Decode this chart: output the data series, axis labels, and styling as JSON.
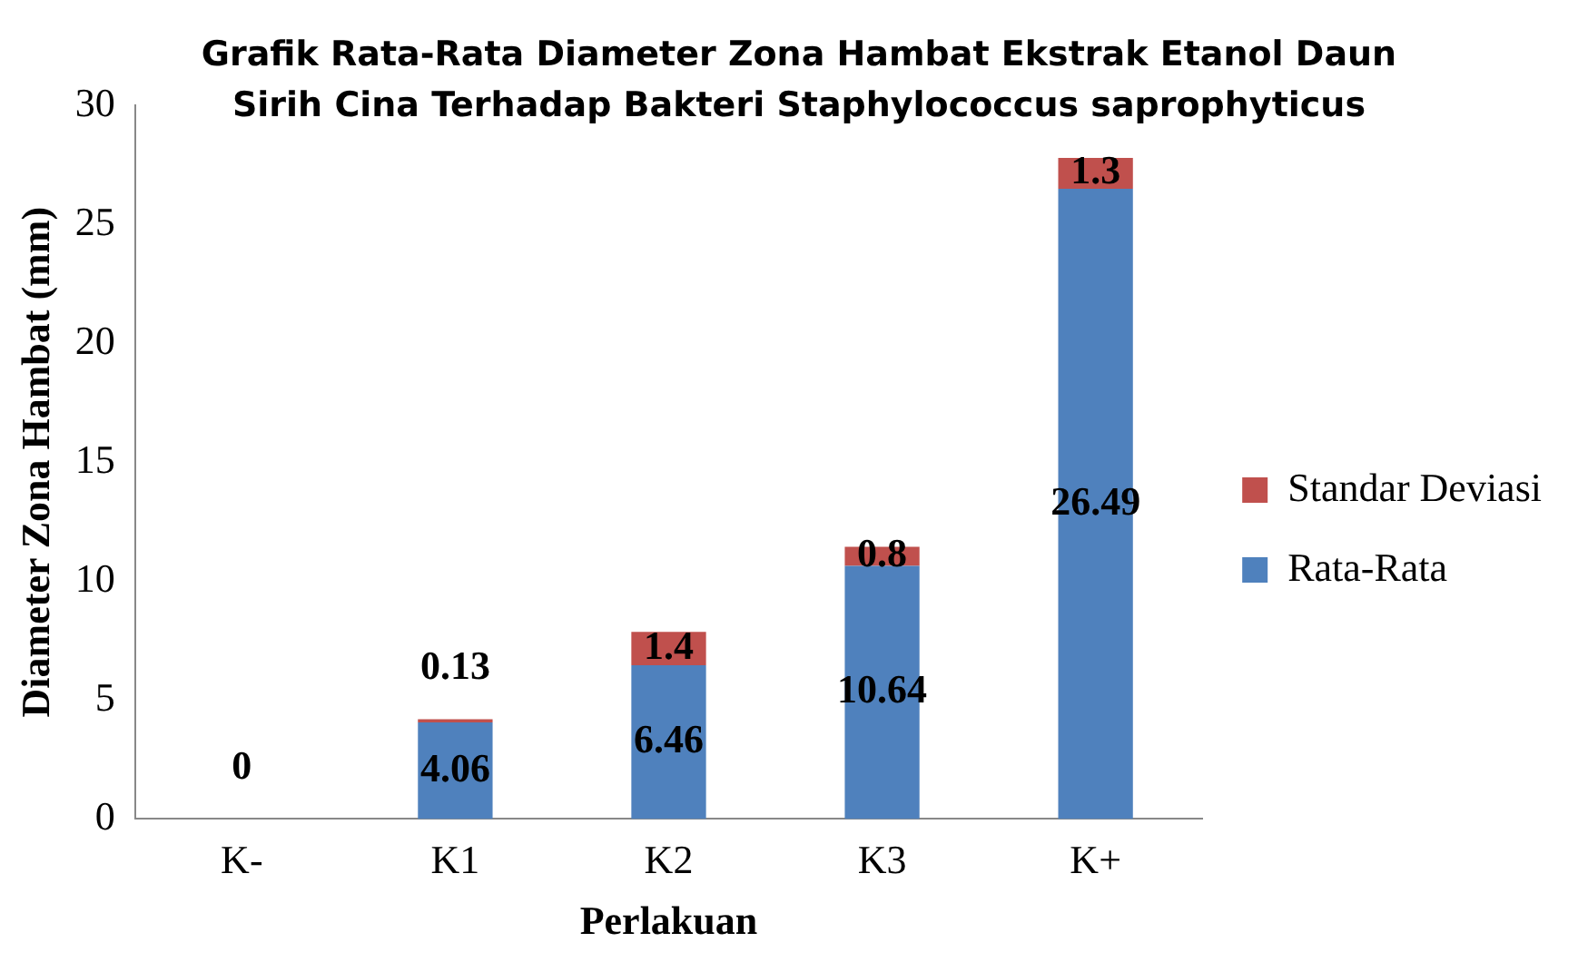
{
  "chart_data": {
    "type": "bar",
    "title": "Grafik Rata-Rata Diameter Zona Hambat Ekstrak  Etanol Daun Sirih Cina Terhadap Bakteri Staphylococcus saprophyticus",
    "xlabel": "Perlakuan",
    "ylabel": "Diameter Zona Hambat (mm)",
    "categories": [
      "K-",
      "K1",
      "K2",
      "K3",
      "K+"
    ],
    "stacked": true,
    "legend": "right",
    "grid": false,
    "ylim": [
      0,
      30
    ],
    "yticks": [
      0,
      5,
      10,
      15,
      20,
      25,
      30
    ],
    "series": [
      {
        "name": "Rata-Rata",
        "color": "#4f81bd",
        "values": [
          0,
          4.06,
          6.46,
          10.64,
          26.49
        ],
        "value_labels": [
          "0",
          "4.06",
          "6.46",
          "10.64",
          "26.49"
        ]
      },
      {
        "name": "Standar Deviasi",
        "color": "#c0504d",
        "values": [
          0,
          0.13,
          1.4,
          0.8,
          1.3
        ],
        "value_labels": [
          null,
          "0.13",
          "1.4",
          "0.8",
          "1.3"
        ]
      }
    ]
  }
}
